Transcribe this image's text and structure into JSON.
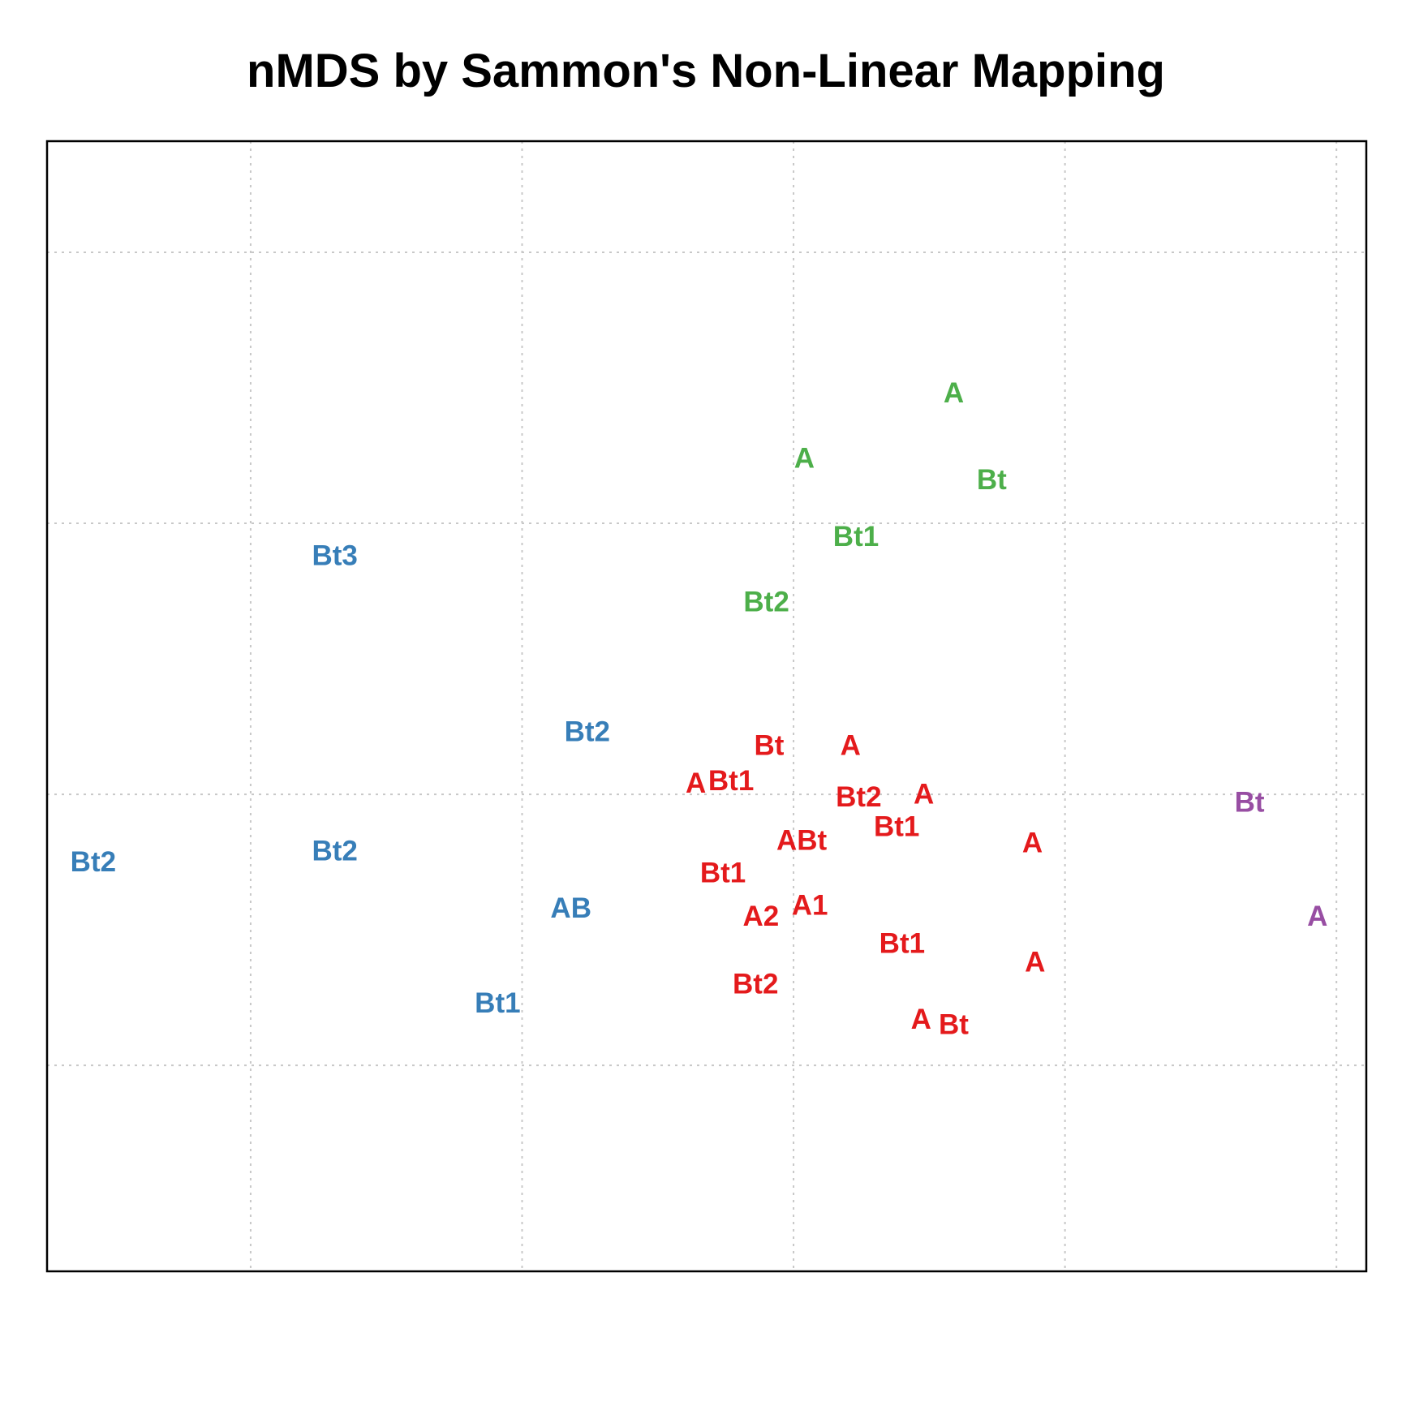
{
  "chart_data": {
    "type": "scatter",
    "title": "nMDS by Sammon's Non-Linear Mapping",
    "xlabel": "",
    "ylabel": "",
    "xlim": [
      -2.75,
      2.11
    ],
    "ylim": [
      -1.76,
      2.41
    ],
    "grid": true,
    "grid_x": [
      -2,
      -1,
      0,
      1,
      2
    ],
    "grid_y": [
      -1,
      0,
      1,
      2
    ],
    "series": [
      {
        "color": "#E41A1C",
        "points": [
          {
            "label": "Bt",
            "x": -0.09,
            "y": 0.18
          },
          {
            "label": "A",
            "x": 0.21,
            "y": 0.18
          },
          {
            "label": "A",
            "x": -0.36,
            "y": 0.04
          },
          {
            "label": "Bt1",
            "x": -0.23,
            "y": 0.05
          },
          {
            "label": "Bt2",
            "x": 0.24,
            "y": -0.01
          },
          {
            "label": "A",
            "x": 0.48,
            "y": 0.0
          },
          {
            "label": "Bt1",
            "x": 0.38,
            "y": -0.12
          },
          {
            "label": "ABt",
            "x": 0.03,
            "y": -0.17
          },
          {
            "label": "A",
            "x": 0.88,
            "y": -0.18
          },
          {
            "label": "Bt1",
            "x": -0.26,
            "y": -0.29
          },
          {
            "label": "A2",
            "x": -0.12,
            "y": -0.45
          },
          {
            "label": "A1",
            "x": 0.06,
            "y": -0.41
          },
          {
            "label": "Bt1",
            "x": 0.4,
            "y": -0.55
          },
          {
            "label": "A",
            "x": 0.89,
            "y": -0.62
          },
          {
            "label": "Bt2",
            "x": -0.14,
            "y": -0.7
          },
          {
            "label": "A",
            "x": 0.47,
            "y": -0.83
          },
          {
            "label": "Bt",
            "x": 0.59,
            "y": -0.85
          }
        ]
      },
      {
        "color": "#377EB8",
        "points": [
          {
            "label": "Bt3",
            "x": -1.69,
            "y": 0.88
          },
          {
            "label": "Bt2",
            "x": -0.76,
            "y": 0.23
          },
          {
            "label": "Bt2",
            "x": -2.58,
            "y": -0.25
          },
          {
            "label": "Bt2",
            "x": -1.69,
            "y": -0.21
          },
          {
            "label": "AB",
            "x": -0.82,
            "y": -0.42
          },
          {
            "label": "Bt1",
            "x": -1.09,
            "y": -0.77
          }
        ]
      },
      {
        "color": "#4DAF4A",
        "points": [
          {
            "label": "A",
            "x": 0.59,
            "y": 1.48
          },
          {
            "label": "A",
            "x": 0.04,
            "y": 1.24
          },
          {
            "label": "Bt",
            "x": 0.73,
            "y": 1.16
          },
          {
            "label": "Bt1",
            "x": 0.23,
            "y": 0.95
          },
          {
            "label": "Bt2",
            "x": -0.1,
            "y": 0.71
          }
        ]
      },
      {
        "color": "#984EA3",
        "points": [
          {
            "label": "Bt",
            "x": 1.68,
            "y": -0.03
          },
          {
            "label": "A",
            "x": 1.93,
            "y": -0.45
          }
        ]
      }
    ]
  }
}
